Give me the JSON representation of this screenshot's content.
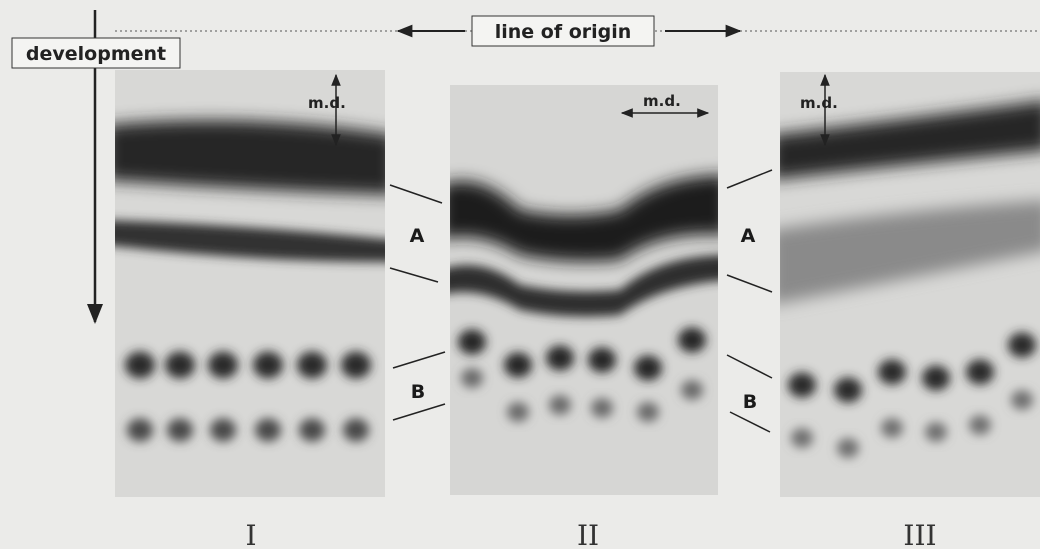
{
  "header": {
    "label": "line of origin"
  },
  "axis": {
    "label": "development"
  },
  "panels": [
    {
      "label": "I",
      "direction_label": "m.d."
    },
    {
      "label": "II",
      "direction_label": "m.d."
    },
    {
      "label": "III",
      "direction_label": "m.d."
    }
  ],
  "zones_left": [
    "A",
    "B"
  ],
  "zones_right": [
    "A",
    "B"
  ]
}
